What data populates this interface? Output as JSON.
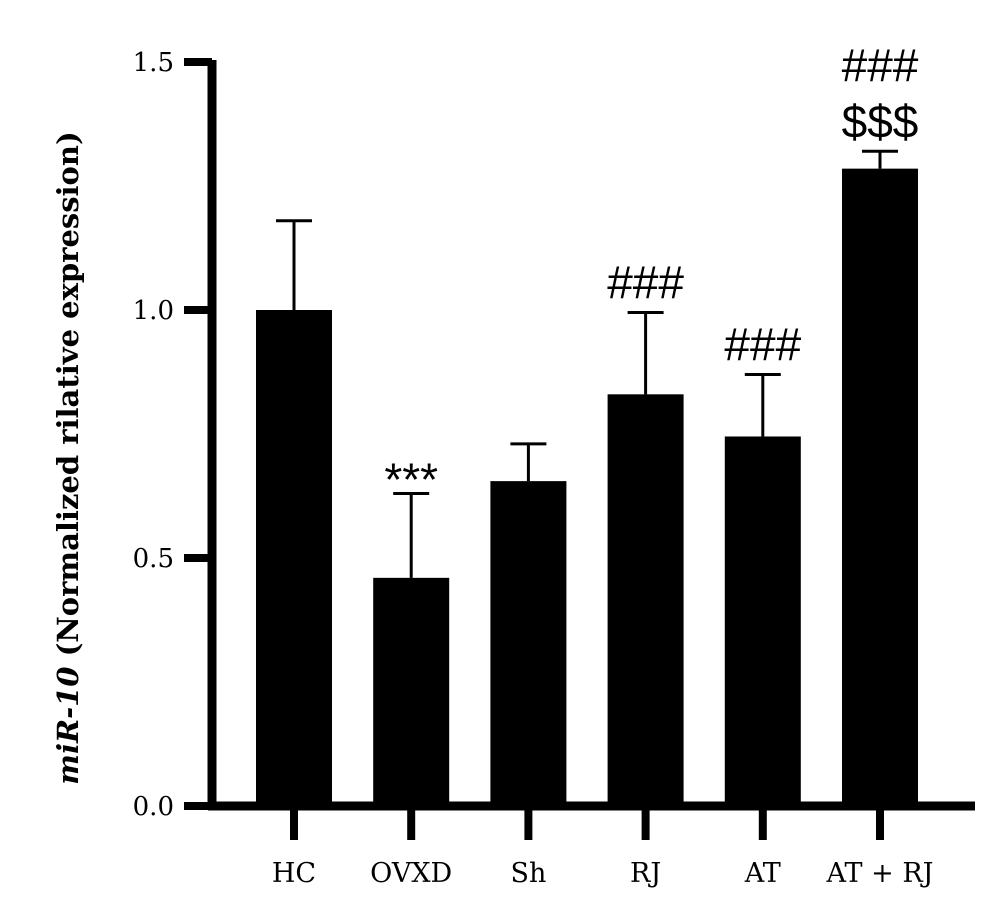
{
  "chart_data": {
    "type": "bar",
    "categories": [
      "HC",
      "OVXD",
      "Sh",
      "RJ",
      "AT",
      "AT + RJ"
    ],
    "values": [
      1.0,
      0.46,
      0.655,
      0.83,
      0.745,
      1.285
    ],
    "errors": [
      0.18,
      0.17,
      0.075,
      0.165,
      0.125,
      0.035
    ],
    "significance": [
      [],
      [
        "***"
      ],
      [],
      [
        "###"
      ],
      [
        "###"
      ],
      [
        "###",
        "$$$"
      ]
    ],
    "ylabel_italic": "miR-10",
    "ylabel_rest": " (Normalized rilative expression)",
    "ylim": [
      0,
      1.5
    ],
    "yticks": [
      0.0,
      0.5,
      1.0,
      1.5
    ],
    "ytick_labels": [
      "0.0",
      "0.5",
      "1.0",
      "1.5"
    ],
    "bar_color": "#000000",
    "grid": false,
    "legend": "none"
  }
}
